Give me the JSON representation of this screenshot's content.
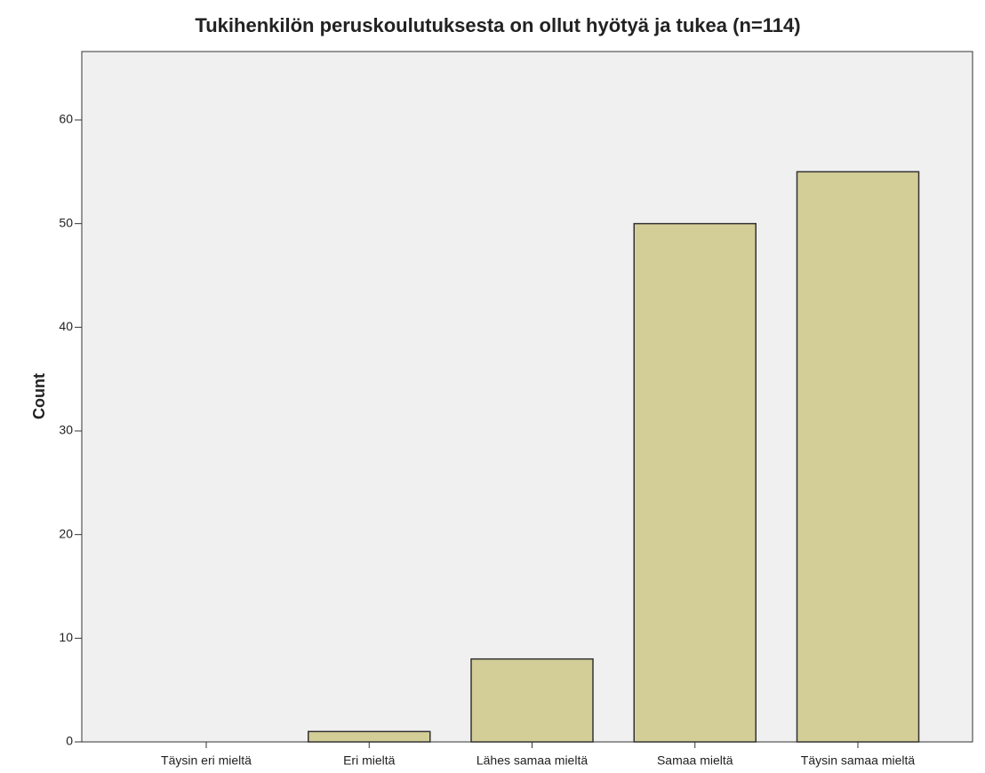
{
  "chart_data": {
    "type": "bar",
    "title": "Tukihenkilön peruskoulutuksesta on ollut hyötyä ja tukea (n=114)",
    "y_label": "Count",
    "categories": [
      "Täysin eri mieltä",
      "Eri mieltä",
      "Lähes samaa mieltä",
      "Samaa mieltä",
      "Täysin samaa mieltä"
    ],
    "values": [
      0,
      1,
      8,
      50,
      55
    ],
    "color": "#d3ce97",
    "ylim": [
      0,
      66.6
    ],
    "yticks": [
      0,
      10,
      20,
      30,
      40,
      50,
      60
    ],
    "grid": false
  }
}
